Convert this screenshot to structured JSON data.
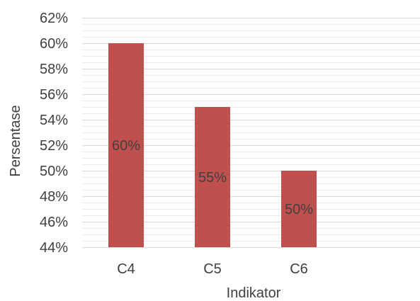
{
  "chart_data": {
    "type": "bar",
    "categories": [
      "C4",
      "C5",
      "C6"
    ],
    "values": [
      60,
      55,
      50
    ],
    "data_labels": [
      "60%",
      "55%",
      "50%"
    ],
    "title": "",
    "xlabel": "Indikator",
    "ylabel": "Persentase",
    "ylim": [
      44,
      62
    ],
    "y_major_step": 2,
    "y_minor_step": 0.5,
    "y_tick_labels": [
      "44%",
      "46%",
      "48%",
      "50%",
      "52%",
      "54%",
      "56%",
      "58%",
      "60%",
      "62%"
    ],
    "grid": true,
    "legend": "none",
    "bar_color": "#c0504d"
  }
}
